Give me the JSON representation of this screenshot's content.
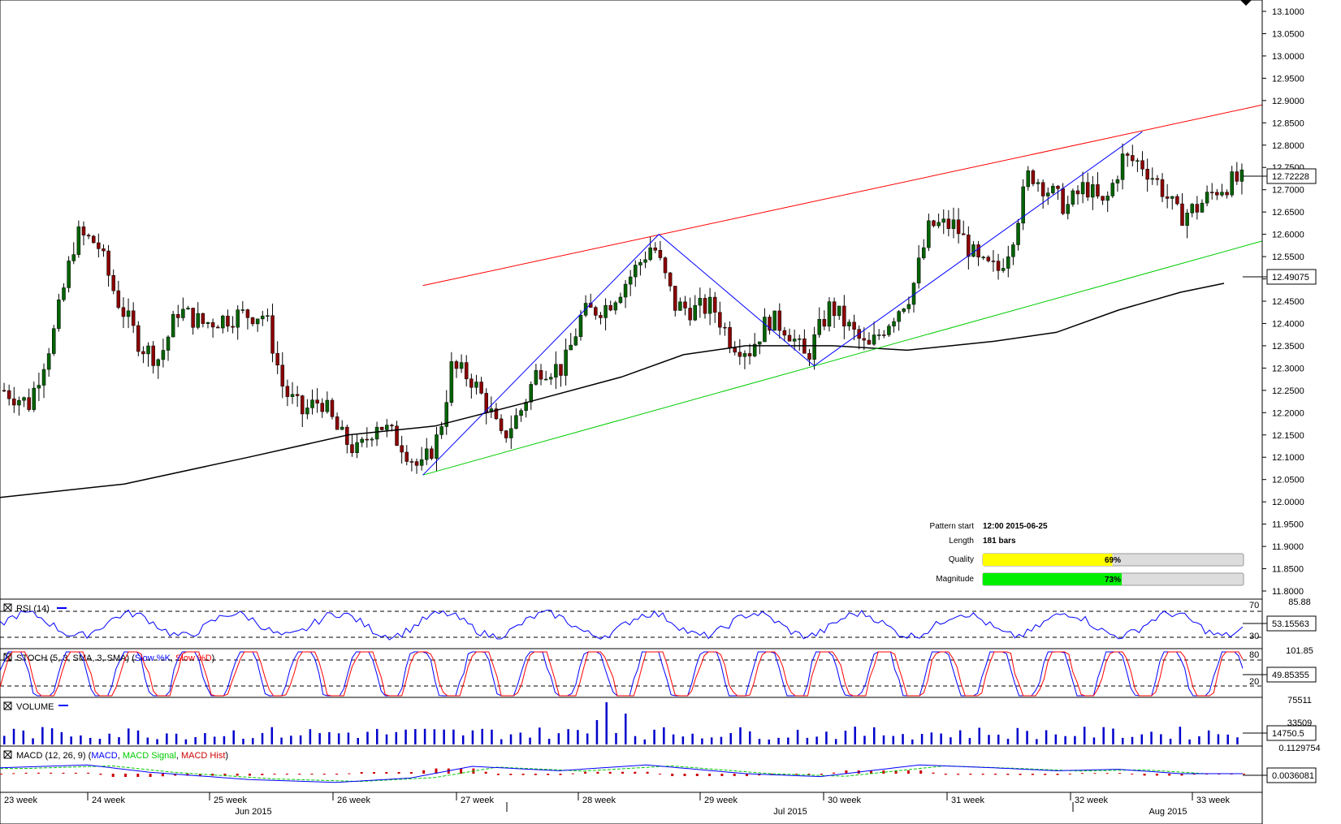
{
  "chart_data": {
    "type": "candlestick",
    "instrument_note": "",
    "y_ticks": [
      "13.1000",
      "13.0500",
      "13.0000",
      "12.9500",
      "12.9000",
      "12.8500",
      "12.8000",
      "12.7500",
      "12.7000",
      "12.6500",
      "12.6000",
      "12.5500",
      "12.5000",
      "12.4500",
      "12.4000",
      "12.3500",
      "12.3000",
      "12.2500",
      "12.2000",
      "12.1500",
      "12.1000",
      "12.0500",
      "12.0000",
      "11.9500",
      "11.9000",
      "11.8500",
      "11.8000"
    ],
    "ylim": [
      11.78,
      13.115
    ],
    "last_price": "12.72228",
    "ma_value": "12.49075",
    "pattern": {
      "type": "ascending channel",
      "upper_line": [
        [
          0.335,
          12.485
        ],
        [
          1.0,
          12.89
        ]
      ],
      "lower_line": [
        [
          0.335,
          12.06
        ],
        [
          1.0,
          12.585
        ]
      ],
      "zigzag": [
        [
          0.335,
          12.06
        ],
        [
          0.522,
          12.6
        ],
        [
          0.645,
          12.305
        ],
        [
          0.905,
          12.83
        ]
      ],
      "info": {
        "pattern_start_label": "Pattern start",
        "pattern_start_value": "12:00 2015-06-25",
        "length_label": "Length",
        "length_value": "181 bars",
        "quality_label": "Quality",
        "quality_pct": 69,
        "quality_text": "69%",
        "magnitude_label": "Magnitude",
        "magnitude_pct": 73,
        "magnitude_text": "73%"
      }
    },
    "week_labels": [
      "23 week",
      "24 week",
      "25 week",
      "26 week",
      "27 week",
      "28 week",
      "29 week",
      "30 week",
      "31 week",
      "32 week",
      "33 week"
    ],
    "month_labels": [
      "Jun 2015",
      "Jul 2015",
      "Aug 2015"
    ],
    "indicators": {
      "rsi": {
        "title": "RSI (14)",
        "top": "85.88",
        "level_high": "70",
        "level_low": "30",
        "value": "53.15563"
      },
      "stoch": {
        "title_prefix": "STOCH (5, 3, SMA, 3, SMA) (",
        "k_label": "Slow %K",
        "sep": ", ",
        "d_label": "Slow %D",
        "suffix": ")",
        "top": "101.85",
        "level_high": "80",
        "level_low": "20",
        "value": "49.85355"
      },
      "volume": {
        "title": "VOLUME",
        "top": "75511",
        "mid": "33509",
        "value": "14750.5"
      },
      "macd": {
        "title_prefix": "MACD (12, 26, 9) (",
        "macd_label": "MACD",
        "sep": ", ",
        "signal_label": "MACD Signal",
        "hist_label": "MACD Hist",
        "suffix": ")",
        "top": "0.1129754",
        "value": "0.0036081"
      }
    }
  },
  "colors": {
    "candle_up": "#006400",
    "candle_down": "#8b0000",
    "upper_line": "#ff0000",
    "lower_line": "#00cc00",
    "zigzag": "#0000ff",
    "ma": "#000000",
    "rsi": "#0000ff",
    "stoch_k": "#0000ff",
    "stoch_d": "#ff0000",
    "volume": "#0000cc",
    "macd": "#0000ff",
    "macd_signal": "#00cc00",
    "macd_hist": "#cc0000",
    "quality_bar": "#ffff00",
    "magnitude_bar": "#00ee00"
  }
}
